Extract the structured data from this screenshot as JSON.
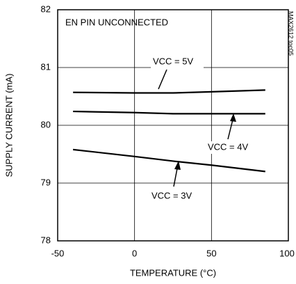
{
  "chart_data": {
    "type": "line",
    "inset_label": "EN PIN UNCONNECTED",
    "side_label": "MAX2612 toc05",
    "x_label": "TEMPERATURE (°C)",
    "y_label": "SUPPLY CURRENT (mA)",
    "x": [
      -40,
      0,
      25,
      50,
      85
    ],
    "series": [
      {
        "name": "VCC = 5V",
        "color": "#000000",
        "values": [
          80.57,
          80.56,
          80.56,
          80.58,
          80.61
        ]
      },
      {
        "name": "VCC = 4V",
        "color": "#000000",
        "values": [
          80.24,
          80.22,
          80.2,
          80.2,
          80.2
        ]
      },
      {
        "name": "VCC = 3V",
        "color": "#000000",
        "values": [
          79.58,
          79.46,
          79.38,
          79.31,
          79.2
        ]
      }
    ],
    "xlim": [
      -50,
      100
    ],
    "xticks": [
      -50,
      0,
      50,
      100
    ],
    "ylim": [
      78,
      82
    ],
    "yticks": [
      78,
      79,
      80,
      81,
      82
    ],
    "grid": true
  }
}
